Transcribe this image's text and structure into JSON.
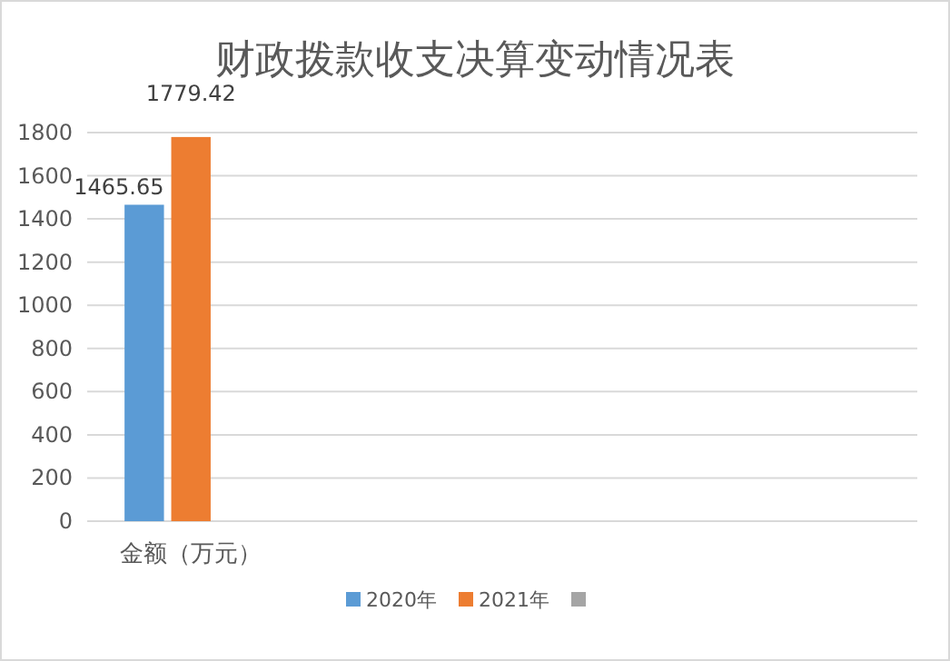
{
  "chart_data": {
    "type": "bar",
    "title": "财政拨款收支决算变动情况表",
    "categories": [
      "金额（万元）",
      null,
      null,
      null
    ],
    "series": [
      {
        "name": "2020年",
        "color": "#5b9bd5",
        "values": [
          1465.65,
          null,
          null,
          null
        ]
      },
      {
        "name": "2021年",
        "color": "#ed7d31",
        "values": [
          1779.42,
          null,
          null,
          null
        ]
      },
      {
        "color": "#a5a5a5",
        "values": [
          null,
          null,
          null,
          null
        ]
      }
    ],
    "ylim": [
      0,
      1800
    ],
    "yticks": [
      0,
      200,
      400,
      600,
      800,
      1000,
      1200,
      1400,
      1600,
      1800
    ],
    "grid": "y",
    "data_labels": true,
    "legend": "bottom"
  }
}
